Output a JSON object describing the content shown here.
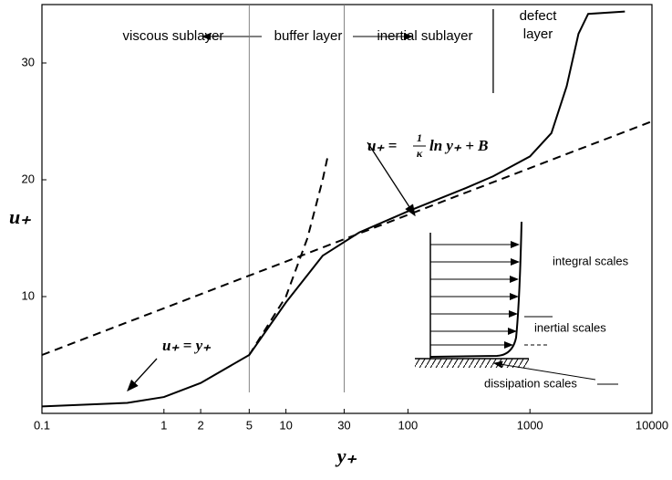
{
  "chart_data": {
    "type": "line",
    "xlabel": "y₊",
    "ylabel": "u₊",
    "xscale": "log",
    "xlim": [
      0.1,
      10000
    ],
    "ylim": [
      0,
      35
    ],
    "xticks": [
      0.1,
      1,
      2,
      5,
      10,
      30,
      100,
      1000,
      10000
    ],
    "yticks": [
      10,
      20,
      30
    ],
    "series": [
      {
        "style": "solid",
        "color": "#000000",
        "x": [
          0.1,
          0.5,
          1,
          2,
          5,
          10,
          20,
          40,
          100,
          300,
          500,
          1000,
          1500,
          2000,
          2500,
          3000,
          6000
        ],
        "values": [
          0.6,
          0.9,
          1.4,
          2.6,
          5,
          9.5,
          13.5,
          15.5,
          17.3,
          19.3,
          20.3,
          22,
          24,
          28,
          32.5,
          34.2,
          34.4
        ]
      },
      {
        "style": "dashed",
        "color": "#000000",
        "x": [
          5,
          10,
          15,
          20,
          22
        ],
        "values": [
          5,
          10,
          15,
          20,
          22
        ]
      },
      {
        "style": "dashed",
        "color": "#000000",
        "x": [
          0.1,
          10000
        ],
        "values": [
          5,
          25
        ]
      }
    ],
    "boundaries": [
      5,
      30,
      500
    ],
    "regions": [
      "viscous sublayer",
      "buffer layer",
      "inertial sublayer",
      "defect",
      "layer"
    ],
    "annotations": {
      "viscous_law": "u₊ = y₊",
      "log_law": {
        "lhs": "u₊ =",
        "numerator": "1",
        "denominator": "κ",
        "rhs": "ln y₊ + B"
      }
    },
    "inset": {
      "labels": [
        "integral scales",
        "inertial scales",
        "dissipation scales"
      ]
    }
  }
}
